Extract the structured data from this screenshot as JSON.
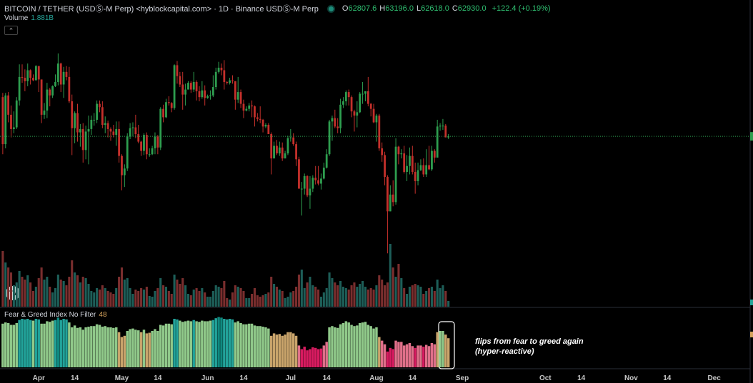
{
  "header": {
    "title": "BITCOIN / TETHER (USDⓈ-M Perp) <hyblockcapital.com> · 1D · Binance USDⓈ-M Perp",
    "ohlc": [
      {
        "label": "O",
        "value": 62807.6,
        "value_label": "62807.6"
      },
      {
        "label": "H",
        "value": 63196,
        "value_label": "63196.0"
      },
      {
        "label": "L",
        "value": 62618,
        "value_label": "62618.0"
      },
      {
        "label": "C",
        "value": 62930,
        "value_label": "62930.0"
      }
    ],
    "change": "+122.4 (+0.19%)"
  },
  "chart_data": {
    "type": "candlestick",
    "start": "03-19",
    "xlim": [
      "03-18",
      "12-14"
    ],
    "xticks": [
      {
        "value": "04-01",
        "label": "Apr"
      },
      {
        "value": "04-14",
        "label": "14"
      },
      {
        "value": "05-01",
        "label": "May"
      },
      {
        "value": "05-14",
        "label": "14"
      },
      {
        "value": "06-01",
        "label": "Jun"
      },
      {
        "value": "06-14",
        "label": "14"
      },
      {
        "value": "07-01",
        "label": "Jul"
      },
      {
        "value": "07-14",
        "label": "14"
      },
      {
        "value": "08-01",
        "label": "Aug"
      },
      {
        "value": "08-14",
        "label": "14"
      },
      {
        "value": "09-01",
        "label": "Sep"
      },
      {
        "value": "10-01",
        "label": "Oct"
      },
      {
        "value": "10-14",
        "label": "14"
      },
      {
        "value": "11-01",
        "label": "Nov"
      },
      {
        "value": "11-14",
        "label": "14"
      },
      {
        "value": "12-01",
        "label": "Dec"
      }
    ],
    "ylim": [
      48000,
      75000
    ],
    "up_color": "#2e9e4f",
    "down_color": "#c4302b",
    "candles": [
      [
        67600,
        68100,
        60800,
        62000
      ],
      [
        62000,
        68100,
        61500,
        67800
      ],
      [
        67800,
        68200,
        64600,
        65500
      ],
      [
        65500,
        66600,
        62800,
        63800
      ],
      [
        63800,
        65900,
        63300,
        64000
      ],
      [
        64000,
        67600,
        63800,
        67200
      ],
      [
        67200,
        71500,
        66600,
        70000
      ],
      [
        70000,
        71500,
        69300,
        69900
      ],
      [
        69900,
        70900,
        68300,
        69500
      ],
      [
        69500,
        71600,
        68900,
        70800
      ],
      [
        70800,
        70900,
        69100,
        69900
      ],
      [
        69900,
        70300,
        69500,
        69600
      ],
      [
        69600,
        71400,
        69600,
        71300
      ],
      [
        71300,
        71300,
        68200,
        69700
      ],
      [
        69700,
        69700,
        64500,
        65500
      ],
      [
        65500,
        66900,
        65000,
        66000
      ],
      [
        66000,
        69300,
        65100,
        68500
      ],
      [
        68500,
        68700,
        66500,
        67800
      ],
      [
        67800,
        69000,
        67500,
        68900
      ],
      [
        68900,
        70300,
        68800,
        69400
      ],
      [
        69400,
        72800,
        69000,
        71600
      ],
      [
        71600,
        71700,
        68200,
        69100
      ],
      [
        69100,
        71200,
        67500,
        70600
      ],
      [
        70600,
        71300,
        69600,
        70000
      ],
      [
        70000,
        71200,
        66900,
        67100
      ],
      [
        67100,
        67900,
        60700,
        63900
      ],
      [
        63900,
        65900,
        62100,
        65700
      ],
      [
        65700,
        66800,
        62300,
        63400
      ],
      [
        63400,
        64400,
        61700,
        63800
      ],
      [
        63800,
        64500,
        59800,
        61300
      ],
      [
        61300,
        64200,
        60200,
        63500
      ],
      [
        63500,
        65400,
        59600,
        63800
      ],
      [
        63800,
        65400,
        63100,
        64900
      ],
      [
        64900,
        65700,
        64200,
        64900
      ],
      [
        64900,
        67200,
        64500,
        66800
      ],
      [
        66800,
        67200,
        65800,
        66400
      ],
      [
        66400,
        67100,
        63900,
        64300
      ],
      [
        64300,
        65300,
        63300,
        64500
      ],
      [
        64500,
        64800,
        62800,
        63800
      ],
      [
        63800,
        64000,
        62400,
        63500
      ],
      [
        63500,
        64300,
        62800,
        63100
      ],
      [
        63100,
        64700,
        61800,
        63800
      ],
      [
        63800,
        64700,
        59800,
        60600
      ],
      [
        60600,
        60800,
        56500,
        58300
      ],
      [
        58300,
        59600,
        56900,
        59100
      ],
      [
        59100,
        63300,
        58800,
        62900
      ],
      [
        62900,
        64500,
        62600,
        63900
      ],
      [
        63900,
        64600,
        62900,
        64000
      ],
      [
        64000,
        65500,
        62700,
        63200
      ],
      [
        63200,
        64300,
        62100,
        62300
      ],
      [
        62300,
        62400,
        60600,
        61200
      ],
      [
        61200,
        63300,
        60700,
        63100
      ],
      [
        63100,
        63400,
        60200,
        60800
      ],
      [
        60800,
        61500,
        60500,
        60800
      ],
      [
        60800,
        61800,
        60700,
        61500
      ],
      [
        61500,
        63400,
        60800,
        62900
      ],
      [
        62900,
        63100,
        60800,
        61600
      ],
      [
        61600,
        66400,
        61300,
        66200
      ],
      [
        66200,
        66700,
        64600,
        65200
      ],
      [
        65200,
        67400,
        65100,
        67000
      ],
      [
        67000,
        67700,
        66600,
        66900
      ],
      [
        66900,
        67000,
        65800,
        66300
      ],
      [
        66300,
        71500,
        66100,
        71400
      ],
      [
        71400,
        71900,
        69200,
        70100
      ],
      [
        70100,
        70600,
        68800,
        69100
      ],
      [
        69100,
        70600,
        66100,
        67900
      ],
      [
        67900,
        69200,
        66600,
        68500
      ],
      [
        68500,
        69500,
        68500,
        69300
      ],
      [
        69300,
        69500,
        68100,
        68500
      ],
      [
        68500,
        70600,
        68200,
        69400
      ],
      [
        69400,
        69600,
        67200,
        68300
      ],
      [
        68300,
        68900,
        67100,
        67600
      ],
      [
        67600,
        69500,
        67400,
        68400
      ],
      [
        68400,
        69000,
        66600,
        67500
      ],
      [
        67500,
        67900,
        67400,
        67700
      ],
      [
        67700,
        68400,
        67300,
        67800
      ],
      [
        67800,
        70200,
        67600,
        68800
      ],
      [
        68800,
        71100,
        68500,
        70600
      ],
      [
        70600,
        71800,
        70400,
        71100
      ],
      [
        71100,
        71600,
        70200,
        70800
      ],
      [
        70800,
        72000,
        68500,
        69400
      ],
      [
        69400,
        69500,
        69100,
        69300
      ],
      [
        69300,
        69900,
        69100,
        69600
      ],
      [
        69600,
        70200,
        69200,
        69500
      ],
      [
        69500,
        69500,
        66100,
        67300
      ],
      [
        67300,
        70000,
        66900,
        68200
      ],
      [
        68200,
        68500,
        66300,
        66800
      ],
      [
        66800,
        67300,
        65100,
        66000
      ],
      [
        66000,
        66500,
        65900,
        66200
      ],
      [
        66200,
        66900,
        65900,
        66600
      ],
      [
        66600,
        67200,
        65200,
        66500
      ],
      [
        66500,
        66600,
        64100,
        65200
      ],
      [
        65200,
        65700,
        64700,
        65000
      ],
      [
        65000,
        66500,
        64500,
        64900
      ],
      [
        64900,
        65000,
        63400,
        64100
      ],
      [
        64100,
        64500,
        63900,
        64300
      ],
      [
        64300,
        64500,
        63200,
        63200
      ],
      [
        63200,
        63400,
        58400,
        60300
      ],
      [
        60300,
        62300,
        60300,
        61800
      ],
      [
        61800,
        62500,
        60700,
        60900
      ],
      [
        60900,
        62300,
        60600,
        61600
      ],
      [
        61600,
        62200,
        60000,
        60300
      ],
      [
        60300,
        61200,
        60300,
        60900
      ],
      [
        60900,
        63000,
        60700,
        62700
      ],
      [
        62700,
        63800,
        62300,
        62800
      ],
      [
        62800,
        63300,
        61800,
        62000
      ],
      [
        62000,
        62300,
        59400,
        60200
      ],
      [
        60200,
        60500,
        56800,
        56700
      ],
      [
        56700,
        57500,
        53500,
        56700
      ],
      [
        56700,
        58500,
        56000,
        58200
      ],
      [
        58200,
        58300,
        55700,
        55900
      ],
      [
        55900,
        58200,
        54300,
        56700
      ],
      [
        56700,
        58300,
        56300,
        58000
      ],
      [
        58000,
        59400,
        57200,
        57700
      ],
      [
        57700,
        59400,
        57100,
        57300
      ],
      [
        57300,
        58500,
        56600,
        57900
      ],
      [
        57900,
        59800,
        57800,
        59200
      ],
      [
        59200,
        61400,
        59100,
        60800
      ],
      [
        60800,
        64900,
        60600,
        64700
      ],
      [
        64700,
        65400,
        62400,
        65100
      ],
      [
        65100,
        66100,
        63900,
        64100
      ],
      [
        64100,
        65100,
        63300,
        63900
      ],
      [
        63900,
        67400,
        63300,
        66700
      ],
      [
        66700,
        67600,
        66300,
        67100
      ],
      [
        67100,
        68400,
        66600,
        68200
      ],
      [
        68200,
        68500,
        66600,
        67600
      ],
      [
        67600,
        67800,
        65200,
        65900
      ],
      [
        65900,
        66100,
        63500,
        65400
      ],
      [
        65400,
        67100,
        64000,
        65800
      ],
      [
        65800,
        68200,
        65700,
        68000
      ],
      [
        68000,
        69400,
        66800,
        68000
      ],
      [
        68000,
        68300,
        67100,
        68300
      ],
      [
        68300,
        70000,
        66500,
        66800
      ],
      [
        66800,
        66900,
        65300,
        66200
      ],
      [
        66200,
        66800,
        64500,
        64600
      ],
      [
        64600,
        65600,
        62300,
        65400
      ],
      [
        65400,
        65600,
        61200,
        61500
      ],
      [
        61500,
        62200,
        59900,
        60700
      ],
      [
        60700,
        61100,
        57100,
        58100
      ],
      [
        58100,
        58300,
        49000,
        54000
      ],
      [
        54000,
        57100,
        54000,
        56000
      ],
      [
        56000,
        57700,
        54600,
        55100
      ],
      [
        55100,
        62700,
        54800,
        61700
      ],
      [
        61700,
        61800,
        59600,
        60800
      ],
      [
        60800,
        61400,
        60300,
        60900
      ],
      [
        60900,
        61800,
        58500,
        58700
      ],
      [
        58700,
        60700,
        57600,
        59400
      ],
      [
        59400,
        61600,
        58400,
        60600
      ],
      [
        60600,
        61800,
        58400,
        58700
      ],
      [
        58700,
        59800,
        56100,
        57600
      ],
      [
        57600,
        59800,
        57100,
        58900
      ],
      [
        58900,
        60200,
        58800,
        59500
      ],
      [
        59500,
        60300,
        58100,
        58400
      ],
      [
        58400,
        61400,
        58100,
        59500
      ],
      [
        59500,
        61800,
        58900,
        59000
      ],
      [
        59000,
        61800,
        58800,
        61200
      ],
      [
        61200,
        61400,
        59800,
        60400
      ],
      [
        60400,
        64900,
        60400,
        64100
      ],
      [
        64100,
        64500,
        63600,
        64200
      ],
      [
        64200,
        65000,
        63700,
        64200
      ],
      [
        64200,
        64400,
        62800,
        62807.6
      ],
      [
        62807.6,
        63196,
        62618,
        62930
      ]
    ],
    "volume": {
      "title": "Volume",
      "value_label": "1.881B",
      "ylim": [
        0,
        90
      ],
      "up_color": "#1d5e58",
      "down_color": "#7a2e2e",
      "values": [
        78,
        62,
        55,
        48,
        30,
        34,
        50,
        42,
        38,
        44,
        34,
        22,
        28,
        40,
        55,
        38,
        42,
        28,
        20,
        26,
        45,
        38,
        36,
        30,
        42,
        65,
        48,
        44,
        34,
        42,
        40,
        32,
        22,
        20,
        26,
        24,
        30,
        26,
        22,
        20,
        18,
        26,
        42,
        55,
        38,
        40,
        26,
        18,
        24,
        22,
        26,
        24,
        28,
        15,
        14,
        22,
        26,
        40,
        30,
        28,
        22,
        18,
        45,
        38,
        32,
        40,
        30,
        18,
        16,
        24,
        26,
        22,
        26,
        20,
        14,
        14,
        22,
        30,
        28,
        26,
        36,
        12,
        10,
        20,
        30,
        28,
        26,
        22,
        12,
        12,
        18,
        26,
        16,
        14,
        16,
        18,
        20,
        42,
        32,
        28,
        24,
        22,
        12,
        14,
        20,
        22,
        28,
        45,
        52,
        26,
        34,
        42,
        30,
        28,
        24,
        14,
        20,
        26,
        48,
        40,
        34,
        30,
        36,
        28,
        26,
        24,
        30,
        34,
        28,
        32,
        36,
        28,
        24,
        26,
        24,
        30,
        44,
        38,
        30,
        34,
        88,
        55,
        42,
        60,
        40,
        26,
        18,
        28,
        30,
        32,
        30,
        28,
        18,
        22,
        26,
        28,
        22,
        38,
        26,
        30,
        22,
        8
      ]
    },
    "indicator": {
      "title": "Fear & Greed Index No Filter",
      "value": 48,
      "ylim": [
        0,
        100
      ],
      "color_scale": [
        [
          0,
          "#d81b60"
        ],
        [
          35,
          "#e0708a"
        ],
        [
          45,
          "#c9a46b"
        ],
        [
          60,
          "#90c98a"
        ],
        [
          78,
          "#22a39a"
        ],
        [
          82,
          "#0f8a80"
        ]
      ],
      "values": [
        72,
        74,
        73,
        70,
        70,
        73,
        78,
        80,
        79,
        80,
        78,
        77,
        80,
        79,
        72,
        72,
        76,
        75,
        77,
        78,
        82,
        78,
        80,
        79,
        74,
        66,
        69,
        65,
        66,
        62,
        66,
        67,
        68,
        68,
        71,
        70,
        67,
        68,
        66,
        66,
        65,
        66,
        58,
        50,
        52,
        60,
        63,
        64,
        62,
        61,
        58,
        62,
        56,
        57,
        60,
        63,
        60,
        70,
        69,
        72,
        72,
        71,
        80,
        79,
        77,
        75,
        76,
        77,
        76,
        78,
        76,
        75,
        77,
        76,
        76,
        77,
        78,
        81,
        83,
        82,
        80,
        79,
        80,
        79,
        74,
        76,
        73,
        71,
        71,
        72,
        72,
        69,
        68,
        68,
        67,
        66,
        64,
        52,
        56,
        54,
        55,
        52,
        54,
        58,
        58,
        56,
        52,
        36,
        30,
        34,
        28,
        30,
        33,
        32,
        30,
        31,
        36,
        42,
        66,
        68,
        66,
        65,
        71,
        73,
        76,
        74,
        70,
        68,
        69,
        73,
        74,
        75,
        70,
        68,
        64,
        66,
        50,
        44,
        38,
        26,
        32,
        30,
        44,
        42,
        42,
        36,
        38,
        40,
        35,
        32,
        36,
        36,
        34,
        37,
        35,
        40,
        38,
        58,
        60,
        60,
        54,
        48
      ]
    },
    "annotation": [
      "flips from fear to greed again",
      "(hyper-reactive)"
    ]
  }
}
